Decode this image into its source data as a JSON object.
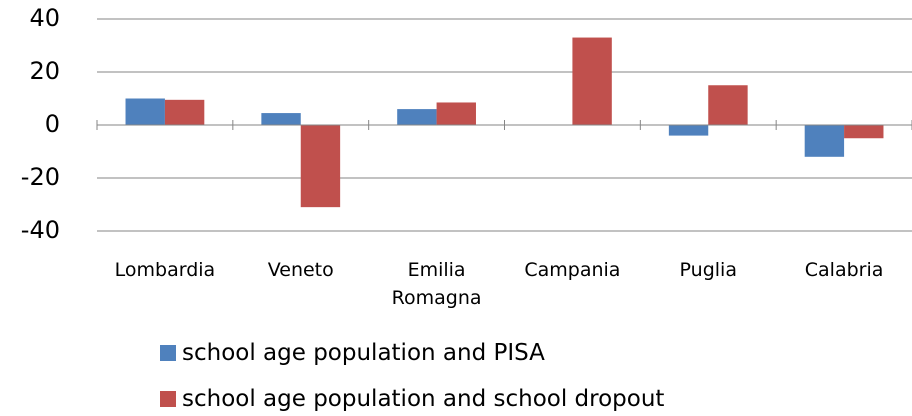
{
  "chart_data": {
    "type": "bar",
    "categories": [
      "Lombardia",
      "Veneto",
      "Emilia Romagna",
      "Campania",
      "Puglia",
      "Calabria"
    ],
    "series": [
      {
        "name": "school age population and PISA",
        "color": "#4f81bd",
        "values": [
          10,
          4.5,
          6,
          0,
          -4,
          -12
        ]
      },
      {
        "name": "school age population and school dropout",
        "color": "#c0504d",
        "values": [
          9.5,
          -31,
          8.5,
          33,
          15,
          -5
        ]
      }
    ],
    "ylim": [
      -40,
      40
    ],
    "yticks": [
      -40,
      -20,
      0,
      20,
      40
    ],
    "grid": true
  }
}
